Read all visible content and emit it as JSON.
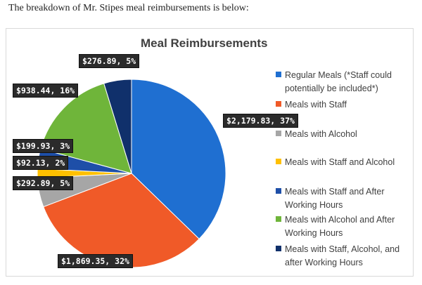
{
  "document": {
    "intro_text": "The breakdown of Mr. Stipes meal reimbursements is below:"
  },
  "chart_data": {
    "type": "pie",
    "title": "Meal Reimbursements",
    "legend_position": "right",
    "slices": [
      {
        "name": "Regular Meals (*Staff could potentially be included*)",
        "value": 2179.83,
        "percent": 37,
        "label": "$2,179.83, 37%",
        "color": "#1f6fd1"
      },
      {
        "name": "Meals with Staff",
        "value": 1869.35,
        "percent": 32,
        "label": "$1,869.35, 32%",
        "color": "#f05a28"
      },
      {
        "name": "Meals with Alcohol",
        "value": 292.89,
        "percent": 5,
        "label": "$292.89, 5%",
        "color": "#a6a6a6"
      },
      {
        "name": "Meals with Staff and Alcohol",
        "value": 92.13,
        "percent": 2,
        "label": "$92.13, 2%",
        "color": "#ffc000"
      },
      {
        "name": "Meals with Staff and After Working Hours",
        "value": 199.93,
        "percent": 3,
        "label": "$199.93, 3%",
        "color": "#1e4fa8"
      },
      {
        "name": "Meals with Alcohol and After Working Hours",
        "value": 938.44,
        "percent": 16,
        "label": "$938.44, 16%",
        "color": "#6fb53a"
      },
      {
        "name": "Meals with Staff, Alcohol, and after Working Hours",
        "value": 276.89,
        "percent": 5,
        "label": "$276.89, 5%",
        "color": "#10306b"
      }
    ]
  }
}
